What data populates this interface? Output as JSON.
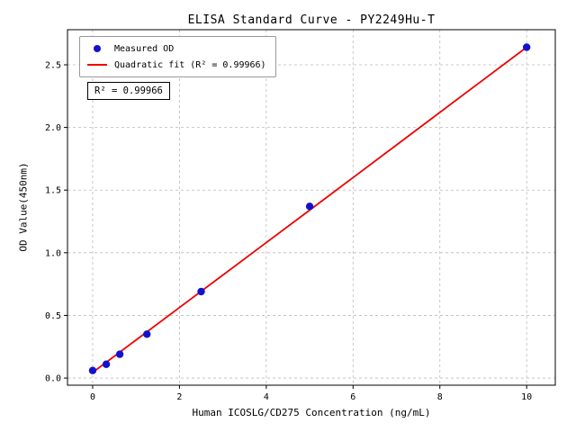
{
  "chart_data": {
    "type": "scatter",
    "title": "ELISA Standard Curve - PY2249Hu-T",
    "xlabel": "Human ICOSLG/CD275 Concentration (ng/mL)",
    "ylabel": "OD Value(450nm)",
    "xlim": [
      -0.58,
      10.66
    ],
    "ylim": [
      -0.057,
      2.78
    ],
    "xticks": [
      0,
      2,
      4,
      6,
      8,
      10
    ],
    "yticks": [
      0,
      0.5,
      1,
      1.5,
      2,
      2.5
    ],
    "grid": true,
    "colors": {
      "grid": "#bbbbbb",
      "frame": "#000000",
      "background": "#ffffff"
    },
    "legend": {
      "position": "upper-left",
      "entries": [
        {
          "label": "Measured OD",
          "marker": "circle",
          "color": "#1212cc"
        },
        {
          "label": "Quadratic fit (R² = 0.99966)",
          "marker": "line",
          "color": "#ee0000"
        }
      ]
    },
    "annotation": {
      "text": "R² = 0.99966",
      "r_squared": 0.99966
    },
    "series": [
      {
        "name": "Measured OD",
        "type": "scatter",
        "color": "#1212cc",
        "points": [
          [
            0,
            0.06
          ],
          [
            0.313,
            0.11
          ],
          [
            0.625,
            0.19
          ],
          [
            1.25,
            0.35
          ],
          [
            2.5,
            0.69
          ],
          [
            5,
            1.37
          ],
          [
            10,
            2.64
          ]
        ]
      },
      {
        "name": "Quadratic fit",
        "type": "line",
        "color": "#ee0000",
        "points": [
          [
            0,
            0.045
          ],
          [
            1,
            0.304
          ],
          [
            2,
            0.563
          ],
          [
            3,
            0.822
          ],
          [
            4,
            1.081
          ],
          [
            5,
            1.34
          ],
          [
            6,
            1.6
          ],
          [
            7,
            1.86
          ],
          [
            8,
            2.12
          ],
          [
            9,
            2.38
          ],
          [
            10,
            2.64
          ]
        ]
      }
    ]
  }
}
